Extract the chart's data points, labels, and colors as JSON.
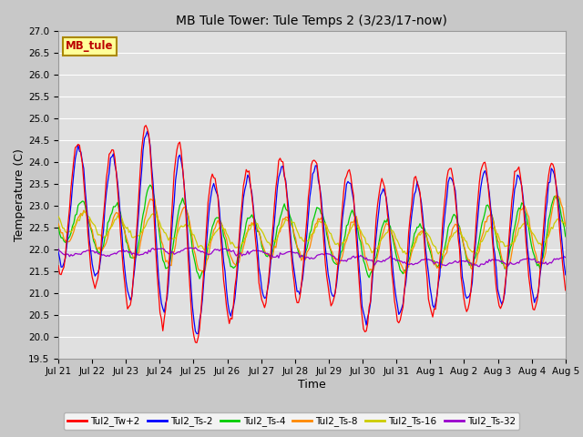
{
  "title": "MB Tule Tower: Tule Temps 2 (3/23/17-now)",
  "xlabel": "Time",
  "ylabel": "Temperature (C)",
  "ylim": [
    19.5,
    27.0
  ],
  "yticks": [
    19.5,
    20.0,
    20.5,
    21.0,
    21.5,
    22.0,
    22.5,
    23.0,
    23.5,
    24.0,
    24.5,
    25.0,
    25.5,
    26.0,
    26.5,
    27.0
  ],
  "xtick_labels": [
    "Jul 21",
    "Jul 22",
    "Jul 23",
    "Jul 24",
    "Jul 25",
    "Jul 26",
    "Jul 27",
    "Jul 28",
    "Jul 29",
    "Jul 30",
    "Jul 31",
    "Aug 1",
    "Aug 2",
    "Aug 3",
    "Aug 4",
    "Aug 5"
  ],
  "legend_labels": [
    "Tul2_Tw+2",
    "Tul2_Ts-2",
    "Tul2_Ts-4",
    "Tul2_Ts-8",
    "Tul2_Ts-16",
    "Tul2_Ts-32"
  ],
  "line_colors": [
    "#ff0000",
    "#0000ff",
    "#00cc00",
    "#ff8800",
    "#cccc00",
    "#9900cc"
  ],
  "fig_bg_color": "#c8c8c8",
  "plot_bg_color": "#e0e0e0",
  "grid_color": "#ffffff",
  "watermark_text": "MB_tule",
  "watermark_bg": "#ffff99",
  "watermark_border": "#aa8800",
  "n_days": 15,
  "pts_per_day": 24
}
